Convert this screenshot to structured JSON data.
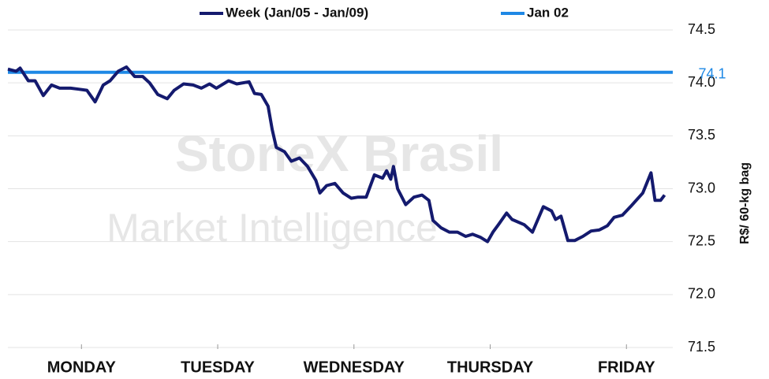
{
  "chart_data": {
    "type": "line",
    "watermark": {
      "title": "StoneX Brasil",
      "subtitle": "Market Intelligence"
    },
    "y_label": "R$/ 60-kg bag",
    "xlim": [
      -0.54,
      4.34
    ],
    "xticks": [
      {
        "value": 0,
        "label": "MONDAY"
      },
      {
        "value": 1,
        "label": "TUESDAY"
      },
      {
        "value": 2,
        "label": "WEDNESDAY"
      },
      {
        "value": 3,
        "label": "THURSDAY"
      },
      {
        "value": 4,
        "label": "FRIDAY"
      }
    ],
    "ylim": [
      71.5,
      74.5
    ],
    "yticks": [
      {
        "value": 71.5,
        "label": "71.5"
      },
      {
        "value": 72,
        "label": "72.0"
      },
      {
        "value": 72.5,
        "label": "72.5"
      },
      {
        "value": 73,
        "label": "73.0"
      },
      {
        "value": 73.5,
        "label": "73.5"
      },
      {
        "value": 74,
        "label": "74.0"
      },
      {
        "value": 74.5,
        "label": "74.5"
      }
    ],
    "grid": true,
    "legend": "top",
    "series": [
      {
        "name": "Week (Jan/05 - Jan/09)",
        "color": "#141a6e",
        "x": [
          -0.54,
          -0.48,
          -0.45,
          -0.39,
          -0.34,
          -0.28,
          -0.22,
          -0.16,
          -0.08,
          -0.02,
          0.04,
          0.1,
          0.16,
          0.21,
          0.27,
          0.33,
          0.39,
          0.45,
          0.5,
          0.56,
          0.63,
          0.68,
          0.75,
          0.82,
          0.88,
          0.94,
          0.99,
          1.08,
          1.14,
          1.23,
          1.27,
          1.32,
          1.37,
          1.4,
          1.43,
          1.49,
          1.54,
          1.6,
          1.66,
          1.72,
          1.75,
          1.8,
          1.86,
          1.92,
          1.98,
          2.03,
          2.09,
          2.15,
          2.21,
          2.24,
          2.27,
          2.29,
          2.32,
          2.38,
          2.44,
          2.5,
          2.55,
          2.58,
          2.64,
          2.7,
          2.76,
          2.82,
          2.87,
          2.93,
          2.98,
          3.02,
          3.06,
          3.12,
          3.16,
          3.25,
          3.31,
          3.39,
          3.45,
          3.48,
          3.52,
          3.57,
          3.62,
          3.68,
          3.74,
          3.8,
          3.86,
          3.91,
          3.97,
          4.03,
          4.12,
          4.18,
          4.21,
          4.25,
          4.28
        ],
        "values": [
          74.13,
          74.11,
          74.14,
          74.02,
          74.02,
          73.88,
          73.98,
          73.95,
          73.95,
          73.94,
          73.93,
          73.82,
          73.98,
          74.02,
          74.11,
          74.15,
          74.06,
          74.06,
          74.0,
          73.89,
          73.85,
          73.93,
          73.99,
          73.98,
          73.95,
          73.99,
          73.95,
          74.02,
          73.99,
          74.01,
          73.9,
          73.89,
          73.78,
          73.56,
          73.39,
          73.35,
          73.26,
          73.29,
          73.21,
          73.08,
          72.96,
          73.03,
          73.05,
          72.96,
          72.91,
          72.92,
          72.92,
          73.13,
          73.1,
          73.17,
          73.09,
          73.21,
          73.0,
          72.85,
          72.92,
          72.94,
          72.89,
          72.7,
          72.63,
          72.59,
          72.59,
          72.55,
          72.57,
          72.54,
          72.5,
          72.59,
          72.66,
          72.77,
          72.71,
          72.66,
          72.59,
          72.83,
          72.79,
          72.71,
          72.74,
          72.51,
          72.51,
          72.55,
          72.6,
          72.61,
          72.65,
          72.73,
          72.75,
          72.83,
          72.96,
          73.15,
          72.89,
          72.89,
          72.94
        ]
      },
      {
        "name": "Jan 02",
        "color": "#1e88e5",
        "x": [
          -0.54,
          4.34
        ],
        "values": [
          74.1,
          74.1
        ]
      }
    ]
  }
}
